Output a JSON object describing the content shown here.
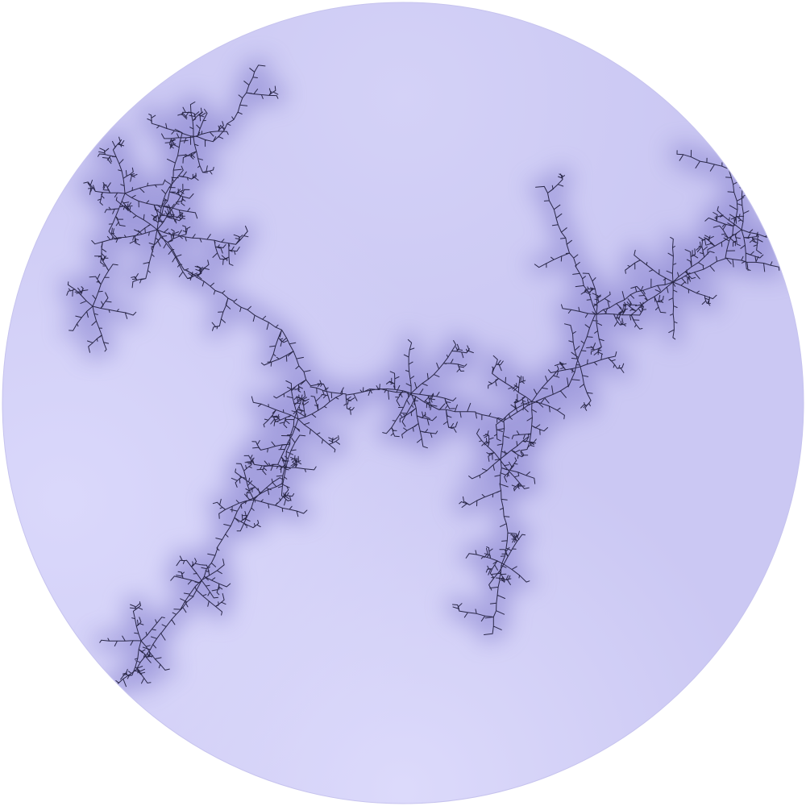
{
  "image": {
    "kind": "julia-set-fractal",
    "shape": "circle",
    "colors": {
      "background": "#ffffff",
      "disk_light": "#d8d6fa",
      "disk_mid": "#c9c6f1",
      "disk_dark": "#aaa6e0",
      "filament": "#2a2848",
      "glow": "#7a74c8"
    }
  }
}
